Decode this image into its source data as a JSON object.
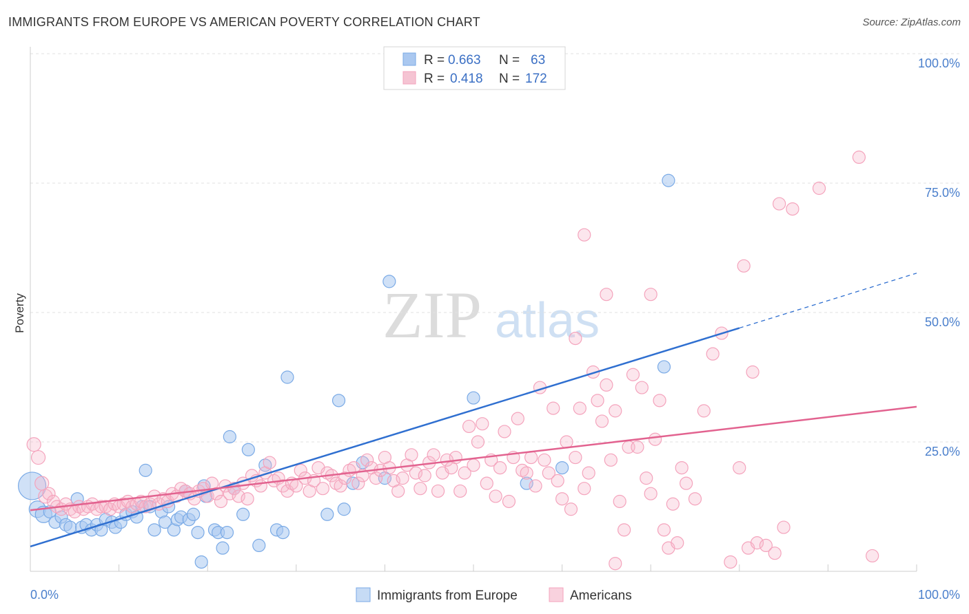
{
  "header": {
    "title": "IMMIGRANTS FROM EUROPE VS AMERICAN POVERTY CORRELATION CHART",
    "source": "Source: ZipAtlas.com"
  },
  "watermark": {
    "zip": "ZIP",
    "atlas": "atlas"
  },
  "legend_top": {
    "rows": [
      {
        "r_label": "R =",
        "r_value": "0.663",
        "n_label": "N =",
        "n_value": "63",
        "color": "#aac8f0"
      },
      {
        "r_label": "R =",
        "r_value": "0.418",
        "n_label": "N =",
        "n_value": "172",
        "color": "#f5b8cb"
      }
    ]
  },
  "chart_data": {
    "type": "scatter",
    "title": "IMMIGRANTS FROM EUROPE VS AMERICAN POVERTY CORRELATION CHART",
    "xlabel": "",
    "ylabel": "Poverty",
    "xlim": [
      0,
      100
    ],
    "ylim": [
      0,
      100
    ],
    "x_tick_labels": [
      "0.0%",
      "100.0%"
    ],
    "y_ticks": [
      25,
      50,
      75,
      100
    ],
    "y_tick_labels": [
      "25.0%",
      "50.0%",
      "75.0%",
      "100.0%"
    ],
    "grid": true,
    "legend_position": "bottom",
    "series": [
      {
        "name": "Immigrants from Europe",
        "color": "#7aaae6",
        "line_color": "#2f6fd0",
        "trend": {
          "x0": 0,
          "y0": 4.8,
          "x1": 80,
          "y1": 47.0,
          "x_dash_end": 100,
          "y_dash_end": 57.6
        },
        "points": [
          [
            0.2,
            16.5
          ],
          [
            0.8,
            12.0
          ],
          [
            1.5,
            11.0
          ],
          [
            2.2,
            11.5
          ],
          [
            2.8,
            9.5
          ],
          [
            3.5,
            10.5
          ],
          [
            4.0,
            9.0
          ],
          [
            4.5,
            8.5
          ],
          [
            5.3,
            14.0
          ],
          [
            5.8,
            8.5
          ],
          [
            6.3,
            9.0
          ],
          [
            6.9,
            8.0
          ],
          [
            7.5,
            9.0
          ],
          [
            8.0,
            8.0
          ],
          [
            8.5,
            10.0
          ],
          [
            9.2,
            9.5
          ],
          [
            9.6,
            8.5
          ],
          [
            10.2,
            9.5
          ],
          [
            10.8,
            11.0
          ],
          [
            11.5,
            11.5
          ],
          [
            12.0,
            10.5
          ],
          [
            12.6,
            12.5
          ],
          [
            13.0,
            19.5
          ],
          [
            13.5,
            12.5
          ],
          [
            14.0,
            8.0
          ],
          [
            14.8,
            11.5
          ],
          [
            15.2,
            9.5
          ],
          [
            15.6,
            12.5
          ],
          [
            16.2,
            8.0
          ],
          [
            16.6,
            10.0
          ],
          [
            17.0,
            10.5
          ],
          [
            17.5,
            15.5
          ],
          [
            17.9,
            10.0
          ],
          [
            18.4,
            11.0
          ],
          [
            18.9,
            7.5
          ],
          [
            19.3,
            1.8
          ],
          [
            19.8,
            14.5
          ],
          [
            19.6,
            16.5
          ],
          [
            20.8,
            8.0
          ],
          [
            21.2,
            7.5
          ],
          [
            21.7,
            4.5
          ],
          [
            22.2,
            7.5
          ],
          [
            22.5,
            26.0
          ],
          [
            23.0,
            16.0
          ],
          [
            24.0,
            11.0
          ],
          [
            24.6,
            23.5
          ],
          [
            25.8,
            5.0
          ],
          [
            26.5,
            20.5
          ],
          [
            27.8,
            8.0
          ],
          [
            28.5,
            7.5
          ],
          [
            29.0,
            37.5
          ],
          [
            33.5,
            11.0
          ],
          [
            34.8,
            33.0
          ],
          [
            35.4,
            12.0
          ],
          [
            36.4,
            17.0
          ],
          [
            37.5,
            21.0
          ],
          [
            40.0,
            18.0
          ],
          [
            50.0,
            33.5
          ],
          [
            56.0,
            17.0
          ],
          [
            60.0,
            20.0
          ],
          [
            71.5,
            39.5
          ],
          [
            40.5,
            56.0
          ],
          [
            72.0,
            75.5
          ]
        ]
      },
      {
        "name": "Americans",
        "color": "#f4a3bc",
        "line_color": "#e2628f",
        "trend": {
          "x0": 0,
          "y0": 11.8,
          "x1": 100,
          "y1": 31.8
        },
        "points": [
          [
            0.4,
            24.5
          ],
          [
            0.9,
            22.0
          ],
          [
            1.3,
            17.0
          ],
          [
            1.7,
            14.5
          ],
          [
            2.1,
            15.0
          ],
          [
            2.6,
            13.5
          ],
          [
            3.0,
            12.5
          ],
          [
            3.5,
            12.0
          ],
          [
            4.0,
            13.0
          ],
          [
            4.5,
            12.0
          ],
          [
            5.0,
            11.5
          ],
          [
            5.5,
            12.5
          ],
          [
            6.0,
            12.0
          ],
          [
            6.5,
            12.5
          ],
          [
            7.0,
            13.0
          ],
          [
            7.5,
            12.0
          ],
          [
            8.0,
            12.5
          ],
          [
            8.5,
            12.5
          ],
          [
            9.0,
            12.0
          ],
          [
            9.5,
            13.0
          ],
          [
            10.0,
            12.5
          ],
          [
            10.5,
            13.0
          ],
          [
            11.0,
            13.5
          ],
          [
            11.5,
            12.5
          ],
          [
            12.0,
            13.0
          ],
          [
            12.5,
            13.5
          ],
          [
            13.0,
            12.5
          ],
          [
            13.5,
            13.0
          ],
          [
            14.0,
            14.5
          ],
          [
            14.5,
            13.0
          ],
          [
            15.0,
            14.0
          ],
          [
            15.5,
            13.5
          ],
          [
            16.0,
            15.0
          ],
          [
            16.5,
            14.5
          ],
          [
            17.0,
            16.0
          ],
          [
            17.5,
            15.5
          ],
          [
            18.0,
            15.0
          ],
          [
            18.5,
            14.0
          ],
          [
            19.0,
            15.5
          ],
          [
            19.5,
            16.0
          ],
          [
            20.0,
            14.5
          ],
          [
            20.5,
            17.0
          ],
          [
            21.0,
            15.0
          ],
          [
            21.5,
            13.5
          ],
          [
            22.0,
            16.5
          ],
          [
            22.5,
            15.0
          ],
          [
            23.0,
            16.0
          ],
          [
            23.5,
            14.5
          ],
          [
            24.0,
            17.0
          ],
          [
            24.5,
            14.0
          ],
          [
            25.0,
            18.5
          ],
          [
            25.5,
            17.5
          ],
          [
            26.0,
            16.5
          ],
          [
            26.5,
            19.0
          ],
          [
            27.0,
            21.0
          ],
          [
            27.5,
            17.5
          ],
          [
            28.0,
            18.0
          ],
          [
            28.5,
            16.5
          ],
          [
            29.0,
            15.5
          ],
          [
            29.5,
            17.0
          ],
          [
            30.0,
            16.5
          ],
          [
            30.5,
            19.5
          ],
          [
            31.0,
            18.0
          ],
          [
            31.5,
            15.5
          ],
          [
            32.0,
            17.5
          ],
          [
            32.5,
            20.0
          ],
          [
            33.0,
            16.0
          ],
          [
            33.5,
            19.0
          ],
          [
            34.0,
            18.5
          ],
          [
            34.5,
            17.0
          ],
          [
            35.0,
            16.5
          ],
          [
            35.5,
            18.0
          ],
          [
            36.0,
            19.5
          ],
          [
            36.5,
            20.0
          ],
          [
            37.0,
            17.0
          ],
          [
            37.5,
            18.5
          ],
          [
            38.0,
            21.5
          ],
          [
            38.5,
            20.0
          ],
          [
            39.0,
            18.0
          ],
          [
            39.5,
            19.5
          ],
          [
            40.0,
            22.0
          ],
          [
            40.5,
            20.0
          ],
          [
            41.0,
            17.5
          ],
          [
            41.5,
            15.5
          ],
          [
            42.0,
            18.0
          ],
          [
            42.5,
            20.5
          ],
          [
            43.0,
            22.5
          ],
          [
            43.5,
            19.0
          ],
          [
            44.0,
            16.0
          ],
          [
            44.5,
            18.5
          ],
          [
            45.0,
            21.0
          ],
          [
            45.5,
            22.5
          ],
          [
            46.0,
            15.5
          ],
          [
            46.5,
            19.0
          ],
          [
            47.0,
            21.5
          ],
          [
            47.5,
            20.0
          ],
          [
            48.0,
            22.0
          ],
          [
            48.5,
            15.5
          ],
          [
            49.0,
            19.0
          ],
          [
            49.5,
            28.0
          ],
          [
            50.0,
            20.5
          ],
          [
            50.5,
            25.0
          ],
          [
            51.0,
            28.5
          ],
          [
            51.5,
            17.0
          ],
          [
            52.0,
            21.5
          ],
          [
            52.5,
            14.5
          ],
          [
            53.0,
            20.0
          ],
          [
            53.5,
            27.0
          ],
          [
            54.0,
            13.5
          ],
          [
            54.5,
            22.0
          ],
          [
            55.0,
            29.5
          ],
          [
            55.5,
            19.5
          ],
          [
            56.0,
            19.0
          ],
          [
            56.5,
            22.0
          ],
          [
            57.0,
            16.5
          ],
          [
            57.5,
            35.5
          ],
          [
            58.0,
            21.5
          ],
          [
            58.5,
            19.0
          ],
          [
            59.0,
            31.5
          ],
          [
            59.5,
            17.5
          ],
          [
            60.0,
            14.0
          ],
          [
            60.5,
            25.0
          ],
          [
            61.0,
            12.0
          ],
          [
            61.5,
            22.0
          ],
          [
            62.0,
            31.5
          ],
          [
            62.5,
            16.0
          ],
          [
            63.0,
            19.0
          ],
          [
            63.5,
            38.5
          ],
          [
            64.0,
            33.0
          ],
          [
            64.5,
            29.0
          ],
          [
            65.0,
            36.0
          ],
          [
            65.5,
            21.5
          ],
          [
            66.0,
            31.0
          ],
          [
            66.5,
            13.5
          ],
          [
            67.0,
            8.0
          ],
          [
            67.5,
            24.0
          ],
          [
            68.0,
            38.0
          ],
          [
            68.5,
            24.0
          ],
          [
            69.0,
            35.5
          ],
          [
            69.5,
            18.0
          ],
          [
            70.0,
            15.0
          ],
          [
            70.5,
            25.5
          ],
          [
            71.0,
            33.0
          ],
          [
            71.5,
            8.0
          ],
          [
            72.0,
            4.5
          ],
          [
            72.5,
            13.0
          ],
          [
            73.0,
            5.5
          ],
          [
            73.5,
            20.0
          ],
          [
            74.0,
            17.0
          ],
          [
            75.0,
            14.0
          ],
          [
            76.0,
            31.0
          ],
          [
            77.0,
            42.0
          ],
          [
            78.0,
            46.0
          ],
          [
            79.0,
            1.8
          ],
          [
            80.0,
            20.0
          ],
          [
            81.0,
            4.5
          ],
          [
            82.0,
            5.5
          ],
          [
            83.0,
            5.0
          ],
          [
            84.0,
            3.5
          ],
          [
            85.0,
            8.5
          ],
          [
            86.0,
            70.0
          ],
          [
            80.5,
            59.0
          ],
          [
            81.5,
            38.5
          ],
          [
            70.0,
            53.5
          ],
          [
            65.0,
            53.5
          ],
          [
            62.5,
            65.0
          ],
          [
            61.5,
            45.0
          ],
          [
            84.5,
            71.0
          ],
          [
            89.0,
            74.0
          ],
          [
            93.5,
            80.0
          ],
          [
            66.0,
            1.5
          ],
          [
            95.0,
            3.0
          ]
        ]
      }
    ]
  }
}
